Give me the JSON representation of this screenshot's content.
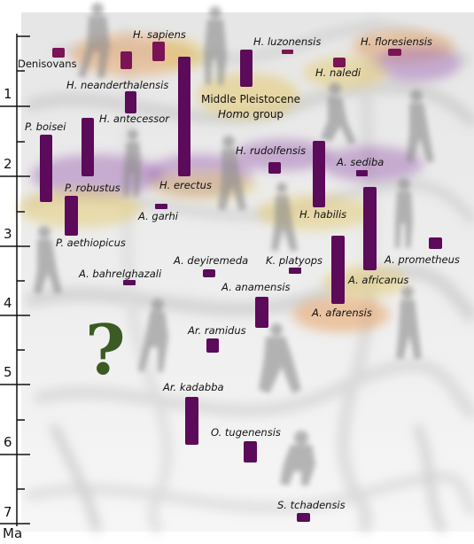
{
  "axis": {
    "unit": "Ma",
    "ticks": [
      "1",
      "2",
      "3",
      "4",
      "5",
      "6",
      "7"
    ]
  },
  "species": {
    "denisovans": "Denisovans",
    "h_sapiens": "H. sapiens",
    "h_luzonensis": "H. luzonensis",
    "h_floresiensis": "H. floresiensis",
    "h_neanderthalensis": "H. neanderthalensis",
    "h_naledi": "H. naledi",
    "h_antecessor": "H. antecessor",
    "p_boisei": "P. boisei",
    "h_rudolfensis": "H. rudolfensis",
    "a_sediba": "A. sediba",
    "p_robustus": "P. robustus",
    "h_erectus": "H. erectus",
    "a_garhi": "A. garhi",
    "h_habilis": "H. habilis",
    "p_aethiopicus": "P. aethiopicus",
    "a_prometheus": "A. prometheus",
    "a_bahrelghazali": "A. bahrelghazali",
    "a_deyiremeda": "A. deyiremeda",
    "k_platyops": "K. platyops",
    "a_africanus": "A. africanus",
    "a_anamensis": "A. anamensis",
    "a_afarensis": "A. afarensis",
    "ar_ramidus": "Ar. ramidus",
    "ar_kadabba": "Ar. kadabba",
    "o_tugenensis": "O. tugenensis",
    "s_tchadensis": "S. tchadensis"
  },
  "group": {
    "line1": "Middle Pleistocene",
    "line2": "Homo",
    "line3": "group"
  },
  "unknown_origin": "?",
  "colors": {
    "bar": "#5c0a5a",
    "bar_small": "#7a1455",
    "purple_zone": "#9a5fb0",
    "orange_zone": "#e8a060",
    "yellow_zone": "#e6cc78",
    "question": "#3b5a24",
    "silhouette": "#8a8a8a"
  }
}
